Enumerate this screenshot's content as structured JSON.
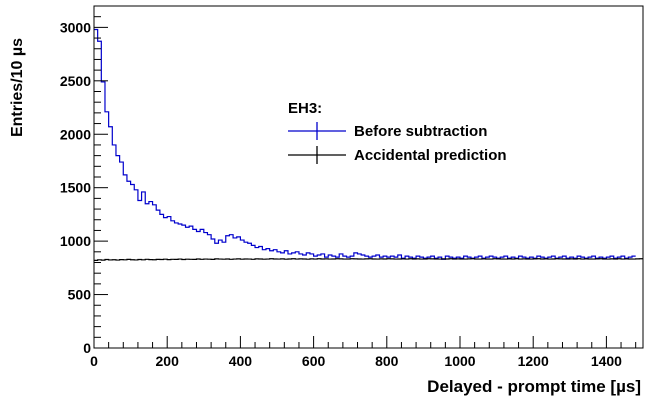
{
  "chart_data": {
    "type": "line",
    "title": "",
    "xlabel": "Delayed - prompt time [µs]",
    "ylabel": "Entries/10 µs",
    "xlim": [
      0,
      1500
    ],
    "ylim": [
      0,
      3200
    ],
    "x_ticks": [
      0,
      200,
      400,
      600,
      800,
      1000,
      1200,
      1400
    ],
    "y_ticks": [
      0,
      500,
      1000,
      1500,
      2000,
      2500,
      3000
    ],
    "x_tick_labels": [
      "0",
      "200",
      "400",
      "600",
      "800",
      "1000",
      "1200",
      "1400"
    ],
    "y_tick_labels": [
      "0",
      "500",
      "1000",
      "1500",
      "2000",
      "2500",
      "3000"
    ],
    "grid": false,
    "legend": {
      "title": "EH3:",
      "placement": "top-center"
    },
    "bin_width": 10,
    "series": [
      {
        "name": "Before subtraction",
        "color": "#0000cc",
        "values": [
          2980,
          2870,
          2490,
          2210,
          2070,
          1900,
          1800,
          1740,
          1620,
          1560,
          1530,
          1480,
          1380,
          1460,
          1350,
          1370,
          1340,
          1290,
          1250,
          1220,
          1230,
          1190,
          1170,
          1160,
          1150,
          1130,
          1140,
          1110,
          1090,
          1110,
          1080,
          1060,
          1020,
          980,
          1010,
          990,
          1050,
          1060,
          1030,
          1040,
          1010,
          990,
          980,
          960,
          940,
          950,
          920,
          930,
          910,
          920,
          900,
          890,
          910,
          880,
          890,
          900,
          880,
          870,
          890,
          880,
          860,
          870,
          880,
          850,
          870,
          860,
          850,
          880,
          860,
          850,
          860,
          890,
          880,
          870,
          860,
          850,
          860,
          870,
          850,
          860,
          850,
          860,
          850,
          870,
          840,
          860,
          850,
          840,
          860,
          850,
          840,
          850,
          860,
          840,
          850,
          830,
          860,
          850,
          840,
          850,
          840,
          860,
          850,
          840,
          850,
          860,
          840,
          850,
          860,
          850,
          840,
          850,
          860,
          840,
          850,
          840,
          860,
          850,
          840,
          850,
          840,
          860,
          850,
          840,
          850,
          860,
          840,
          850,
          860,
          840,
          850,
          840,
          860,
          850,
          840,
          850,
          860,
          840,
          850,
          840,
          850,
          860,
          840,
          850,
          860,
          840,
          850,
          860
        ]
      },
      {
        "name": "Accidental prediction",
        "color": "#000000",
        "values": [
          820,
          825,
          822,
          828,
          824,
          826,
          823,
          827,
          825,
          829,
          826,
          824,
          828,
          825,
          830,
          827,
          826,
          829,
          828,
          831,
          827,
          830,
          829,
          832,
          828,
          831,
          830,
          829,
          833,
          830,
          832,
          831,
          829,
          834,
          832,
          831,
          833,
          830,
          832,
          834,
          831,
          833,
          832,
          830,
          834,
          833,
          831,
          832,
          835,
          833,
          832,
          834,
          831,
          833,
          835,
          832,
          834,
          833,
          831,
          834,
          832,
          835,
          833,
          834,
          832,
          833,
          835,
          834,
          832,
          833,
          835,
          834,
          833,
          832,
          834,
          835,
          833,
          832,
          834,
          833,
          835,
          834,
          832,
          833,
          834,
          832,
          835,
          833,
          834,
          832,
          833,
          835,
          834,
          833,
          832,
          834,
          833,
          835,
          832,
          834,
          833,
          832,
          834,
          835,
          833,
          832,
          834,
          833,
          832,
          835,
          834,
          833,
          832,
          834,
          833,
          835,
          832,
          834,
          833,
          832,
          834,
          835,
          833,
          834,
          832,
          833,
          835,
          834,
          833,
          832,
          834,
          833,
          835,
          832,
          834,
          833,
          832,
          834,
          835,
          833,
          832,
          834,
          833,
          835,
          832,
          834,
          833,
          832,
          834,
          835
        ]
      }
    ]
  }
}
